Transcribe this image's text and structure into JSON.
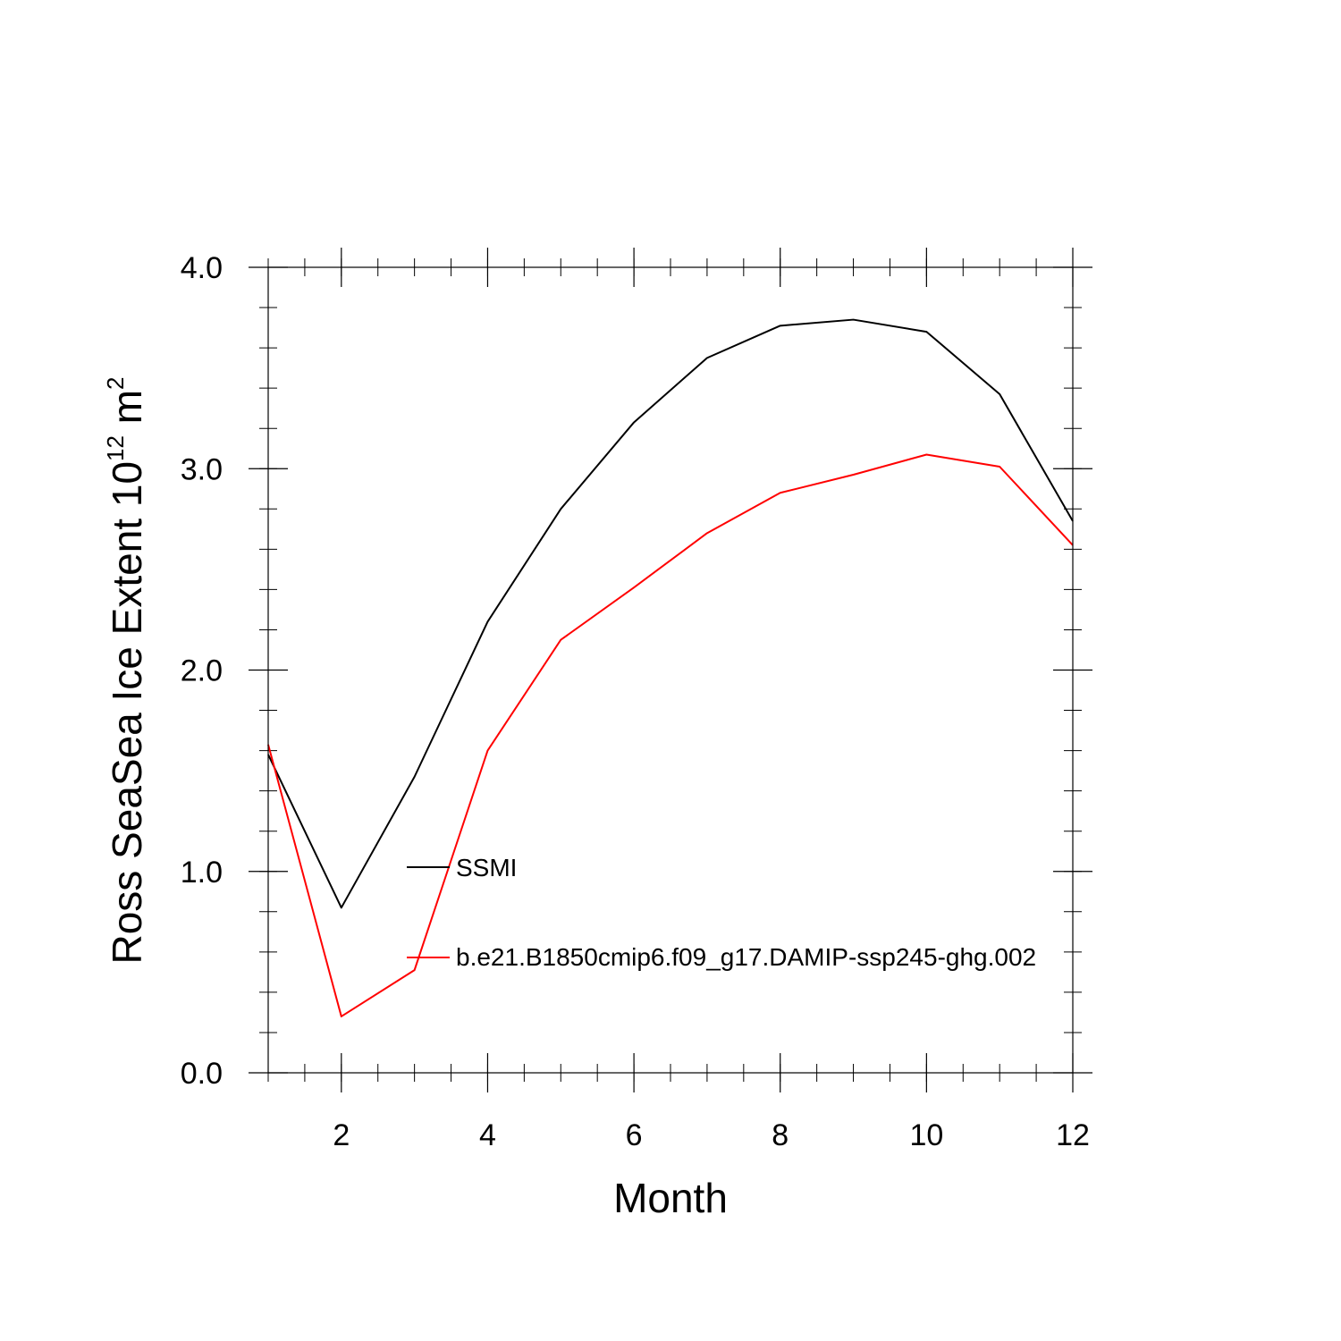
{
  "chart_data": {
    "type": "line",
    "title": "",
    "xlabel": "Month",
    "ylabel": {
      "text": "Ross SeaSea Ice Extent 10",
      "superscript": "12",
      "unit": " m",
      "unit_superscript": "2"
    },
    "xlim": [
      1,
      12
    ],
    "ylim": [
      0,
      4
    ],
    "x": [
      1,
      2,
      3,
      4,
      5,
      6,
      7,
      8,
      9,
      10,
      11,
      12
    ],
    "x_ticks": [
      2,
      4,
      6,
      8,
      10,
      12
    ],
    "x_tick_labels": [
      "2",
      "4",
      "6",
      "8",
      "10",
      "12"
    ],
    "y_ticks": [
      0,
      1,
      2,
      3,
      4
    ],
    "y_tick_labels": [
      "0.0",
      "1.0",
      "2.0",
      "3.0",
      "4.0"
    ],
    "grid": false,
    "series": [
      {
        "name": "SSMI",
        "color": "#000000",
        "values": [
          1.58,
          0.82,
          1.47,
          2.24,
          2.8,
          3.23,
          3.55,
          3.71,
          3.74,
          3.68,
          3.37,
          2.74
        ]
      },
      {
        "name": "b.e21.B1850cmip6.f09_g17.DAMIP-ssp245-ghg.002",
        "color": "#ff0000",
        "values": [
          1.63,
          0.28,
          0.51,
          1.6,
          2.15,
          2.41,
          2.68,
          2.88,
          2.97,
          3.07,
          3.01,
          2.62
        ]
      }
    ],
    "legend": "center, inside plot"
  }
}
